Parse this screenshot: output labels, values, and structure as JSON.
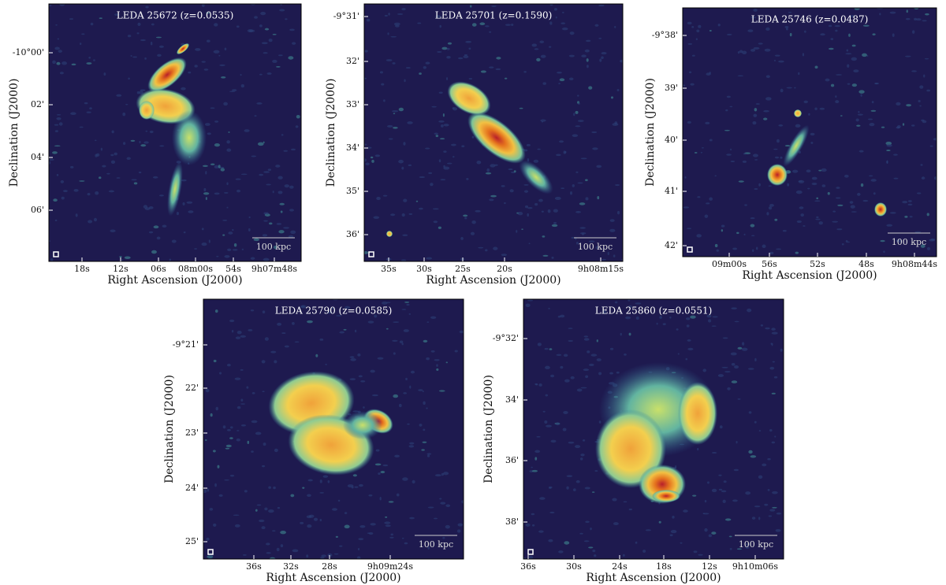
{
  "panels": [
    {
      "title": "LEDA 25672 (z=0.0535)",
      "xlabel": "Right Ascension (J2000)",
      "ylabel": "Declination (J2000)",
      "scalebar": "100 kpc",
      "xticks": [
        "18s",
        "12s",
        "06s",
        "08m00s",
        "54s",
        "9h07m48s"
      ],
      "yticks": [
        "-10°00'",
        "02'",
        "04'",
        "06'"
      ]
    },
    {
      "title": "LEDA 25701 (z=0.1590)",
      "xlabel": "Right Ascension (J2000)",
      "ylabel": "Declination (J2000)",
      "scalebar": "100 kpc",
      "xticks": [
        "35s",
        "30s",
        "25s",
        "20s",
        "9h08m15s"
      ],
      "yticks": [
        "-9°31'",
        "32'",
        "33'",
        "34'",
        "35'",
        "36'"
      ]
    },
    {
      "title": "LEDA 25746 (z=0.0487)",
      "xlabel": "Right Ascension (J2000)",
      "ylabel": "Declination (J2000)",
      "scalebar": "100 kpc",
      "xticks": [
        "09m00s",
        "56s",
        "52s",
        "48s",
        "9h08m44s"
      ],
      "yticks": [
        "-9°38'",
        "39'",
        "40'",
        "41'",
        "42'"
      ]
    },
    {
      "title": "LEDA 25790 (z=0.0585)",
      "xlabel": "Right Ascension (J2000)",
      "ylabel": "Declination (J2000)",
      "scalebar": "100 kpc",
      "xticks": [
        "36s",
        "32s",
        "28s",
        "9h09m24s"
      ],
      "yticks": [
        "-9°21'",
        "22'",
        "23'",
        "24'",
        "25'"
      ]
    },
    {
      "title": "LEDA 25860 (z=0.0551)",
      "xlabel": "Right Ascension (J2000)",
      "ylabel": "Declination (J2000)",
      "scalebar": "100 kpc",
      "xticks": [
        "36s",
        "30s",
        "24s",
        "18s",
        "12s",
        "9h10m06s"
      ],
      "yticks": [
        "-9°32'",
        "34'",
        "36'",
        "38'"
      ]
    }
  ]
}
